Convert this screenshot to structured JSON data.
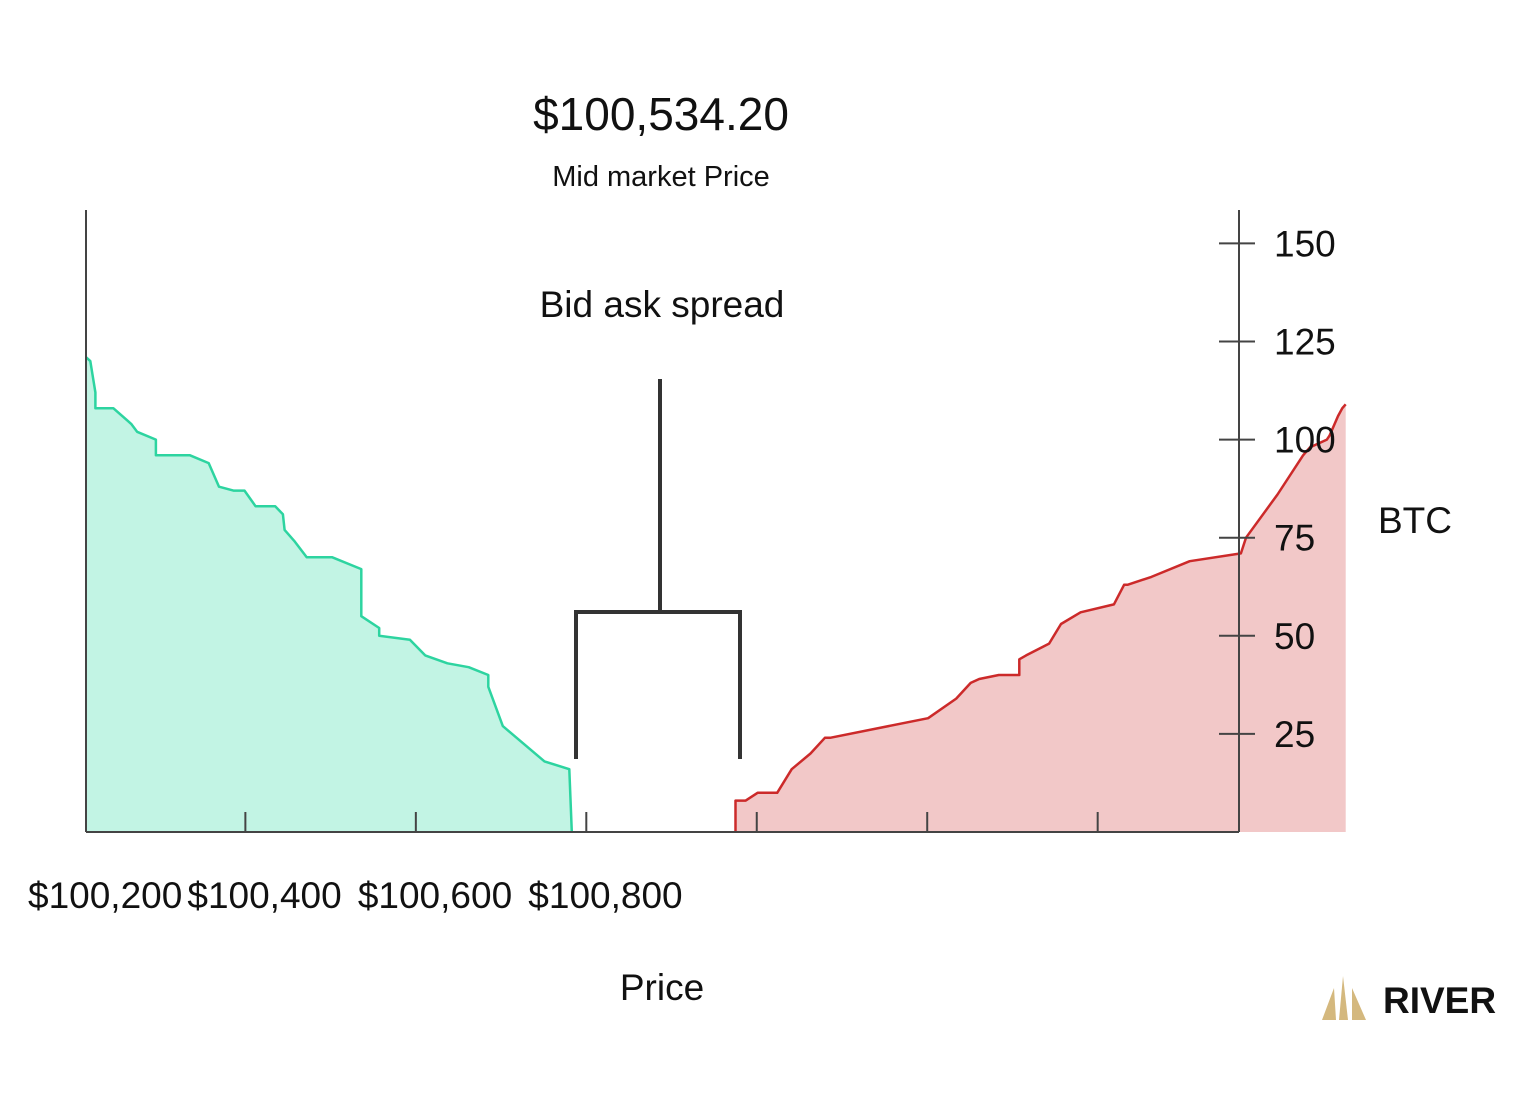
{
  "header": {
    "mid_price_value": "$100,534.20",
    "mid_price_label": "Mid market Price"
  },
  "annotation": {
    "spread_label": "Bid ask spread"
  },
  "brand": {
    "name": "RIVER",
    "icon": "river-logo-icon"
  },
  "colors": {
    "mid_price": "#D4B87E",
    "bid_stroke": "#2DD4A0",
    "bid_fill": "#C2F4E4",
    "ask_stroke": "#CC2A2A",
    "ask_fill": "#F2C8C8",
    "axis": "#444444",
    "text": "#111111",
    "logo_gold": "#D4B87E"
  },
  "chart_data": {
    "type": "area",
    "title": "",
    "xlabel": "Price",
    "ylabel": "BTC",
    "xlim": [
      100200,
      100928
    ],
    "ylim": [
      0,
      150
    ],
    "x_ticks": [
      100200,
      100387,
      100587,
      100787
    ],
    "x_tick_labels": [
      "$100,200",
      "$100,400",
      "$100,600",
      "$100,800"
    ],
    "x_tick_marks": [
      100387,
      100587,
      100787,
      100987,
      101187,
      101387
    ],
    "y_ticks": [
      25,
      50,
      75,
      100,
      125,
      150
    ],
    "y_tick_labels": [
      "25",
      "50",
      "75",
      "100",
      "125",
      "150"
    ],
    "grid": false,
    "series": [
      {
        "name": "",
        "side": "bid",
        "x": [
          100200,
          100205,
          100211,
          100211,
          100232,
          100253,
          100260,
          100282,
          100282,
          100322,
          100344,
          100356,
          100373,
          100386,
          100399,
          100422,
          100431,
          100433,
          100445,
          100459,
          100489,
          100523,
          100523,
          100544,
          100544,
          100580,
          100598,
          100624,
          100649,
          100672,
          100672,
          100689,
          100738,
          100767,
          100770
        ],
        "y": [
          121,
          120,
          112,
          108,
          108,
          104,
          102,
          100,
          96,
          96,
          94,
          88,
          87,
          87,
          83,
          83,
          81,
          77,
          74,
          70,
          70,
          67,
          55,
          52,
          50,
          49,
          45,
          43,
          42,
          40,
          37,
          27,
          18,
          16,
          0
        ]
      },
      {
        "name": "",
        "side": "ask",
        "x": [
          100962,
          100962,
          100974,
          100988,
          101011,
          101028,
          101050,
          101067,
          101073,
          101188,
          101221,
          101238,
          101248,
          101271,
          101295,
          101295,
          101303,
          101330,
          101344,
          101367,
          101406,
          101418,
          101422,
          101450,
          101495,
          101555,
          101561,
          101598,
          101628,
          101636,
          101656,
          101659,
          101669,
          101674,
          101678
        ],
        "y": [
          0,
          8,
          8,
          10,
          10,
          16,
          20,
          24,
          24,
          29,
          34,
          38,
          39,
          40,
          40,
          44,
          45,
          48,
          53,
          56,
          58,
          63,
          63,
          65,
          69,
          71,
          75,
          86,
          96,
          98,
          100,
          101,
          106,
          108,
          109
        ]
      }
    ]
  }
}
